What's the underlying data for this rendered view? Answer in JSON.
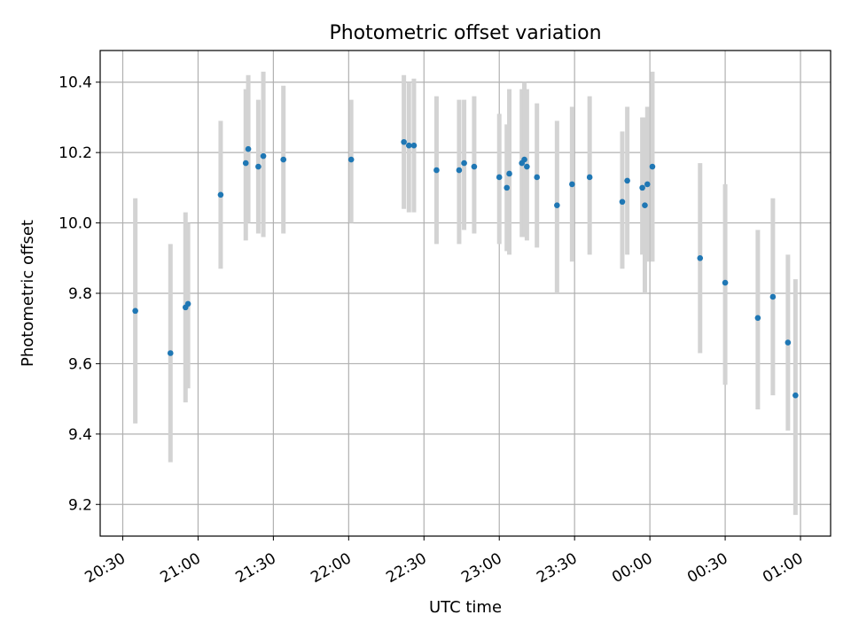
{
  "chart_data": {
    "type": "scatter",
    "title": "Photometric offset variation",
    "xlabel": "UTC time",
    "ylabel": "Photometric offset",
    "xlim": [
      "20:21",
      "01:12"
    ],
    "ylim": [
      9.11,
      10.49
    ],
    "xticks": [
      "20:30",
      "21:00",
      "21:30",
      "22:00",
      "22:30",
      "23:00",
      "23:30",
      "00:00",
      "00:30",
      "01:00"
    ],
    "yticks": [
      9.2,
      9.4,
      9.6,
      9.8,
      10.0,
      10.2,
      10.4
    ],
    "grid": true,
    "error_bar_color": "#d3d3d3",
    "point_color": "#1f77b4",
    "points": [
      {
        "t": "20:35",
        "y": 9.75,
        "lo": 9.43,
        "hi": 10.07
      },
      {
        "t": "20:49",
        "y": 9.63,
        "lo": 9.32,
        "hi": 9.94
      },
      {
        "t": "20:55",
        "y": 9.76,
        "lo": 9.49,
        "hi": 10.03
      },
      {
        "t": "20:56",
        "y": 9.77,
        "lo": 9.53,
        "hi": 10.0
      },
      {
        "t": "21:09",
        "y": 10.08,
        "lo": 9.87,
        "hi": 10.29
      },
      {
        "t": "21:19",
        "y": 10.17,
        "lo": 9.95,
        "hi": 10.38
      },
      {
        "t": "21:20",
        "y": 10.21,
        "lo": 10.0,
        "hi": 10.42
      },
      {
        "t": "21:24",
        "y": 10.16,
        "lo": 9.97,
        "hi": 10.35
      },
      {
        "t": "21:26",
        "y": 10.19,
        "lo": 9.96,
        "hi": 10.43
      },
      {
        "t": "21:34",
        "y": 10.18,
        "lo": 9.97,
        "hi": 10.39
      },
      {
        "t": "22:01",
        "y": 10.18,
        "lo": 10.0,
        "hi": 10.35
      },
      {
        "t": "22:22",
        "y": 10.23,
        "lo": 10.04,
        "hi": 10.42
      },
      {
        "t": "22:24",
        "y": 10.22,
        "lo": 10.03,
        "hi": 10.4
      },
      {
        "t": "22:26",
        "y": 10.22,
        "lo": 10.03,
        "hi": 10.41
      },
      {
        "t": "22:35",
        "y": 10.15,
        "lo": 9.94,
        "hi": 10.36
      },
      {
        "t": "22:44",
        "y": 10.15,
        "lo": 9.94,
        "hi": 10.35
      },
      {
        "t": "22:46",
        "y": 10.17,
        "lo": 9.98,
        "hi": 10.35
      },
      {
        "t": "22:50",
        "y": 10.16,
        "lo": 9.97,
        "hi": 10.36
      },
      {
        "t": "23:00",
        "y": 10.13,
        "lo": 9.94,
        "hi": 10.31
      },
      {
        "t": "23:03",
        "y": 10.1,
        "lo": 9.92,
        "hi": 10.28
      },
      {
        "t": "23:04",
        "y": 10.14,
        "lo": 9.91,
        "hi": 10.38
      },
      {
        "t": "23:09",
        "y": 10.17,
        "lo": 9.96,
        "hi": 10.38
      },
      {
        "t": "23:10",
        "y": 10.18,
        "lo": 9.96,
        "hi": 10.4
      },
      {
        "t": "23:11",
        "y": 10.16,
        "lo": 9.95,
        "hi": 10.38
      },
      {
        "t": "23:15",
        "y": 10.13,
        "lo": 9.93,
        "hi": 10.34
      },
      {
        "t": "23:23",
        "y": 10.05,
        "lo": 9.8,
        "hi": 10.29
      },
      {
        "t": "23:29",
        "y": 10.11,
        "lo": 9.89,
        "hi": 10.33
      },
      {
        "t": "23:36",
        "y": 10.13,
        "lo": 9.91,
        "hi": 10.36
      },
      {
        "t": "23:49",
        "y": 10.06,
        "lo": 9.87,
        "hi": 10.26
      },
      {
        "t": "23:51",
        "y": 10.12,
        "lo": 9.91,
        "hi": 10.33
      },
      {
        "t": "23:57",
        "y": 10.1,
        "lo": 9.91,
        "hi": 10.3
      },
      {
        "t": "23:58",
        "y": 10.05,
        "lo": 9.8,
        "hi": 10.3
      },
      {
        "t": "23:59",
        "y": 10.11,
        "lo": 9.89,
        "hi": 10.33
      },
      {
        "t": "00:01",
        "y": 10.16,
        "lo": 9.89,
        "hi": 10.43
      },
      {
        "t": "00:20",
        "y": 9.9,
        "lo": 9.63,
        "hi": 10.17
      },
      {
        "t": "00:30",
        "y": 9.83,
        "lo": 9.54,
        "hi": 10.11
      },
      {
        "t": "00:43",
        "y": 9.73,
        "lo": 9.47,
        "hi": 9.98
      },
      {
        "t": "00:49",
        "y": 9.79,
        "lo": 9.51,
        "hi": 10.07
      },
      {
        "t": "00:55",
        "y": 9.66,
        "lo": 9.41,
        "hi": 9.91
      },
      {
        "t": "00:58",
        "y": 9.51,
        "lo": 9.17,
        "hi": 9.84
      }
    ]
  }
}
